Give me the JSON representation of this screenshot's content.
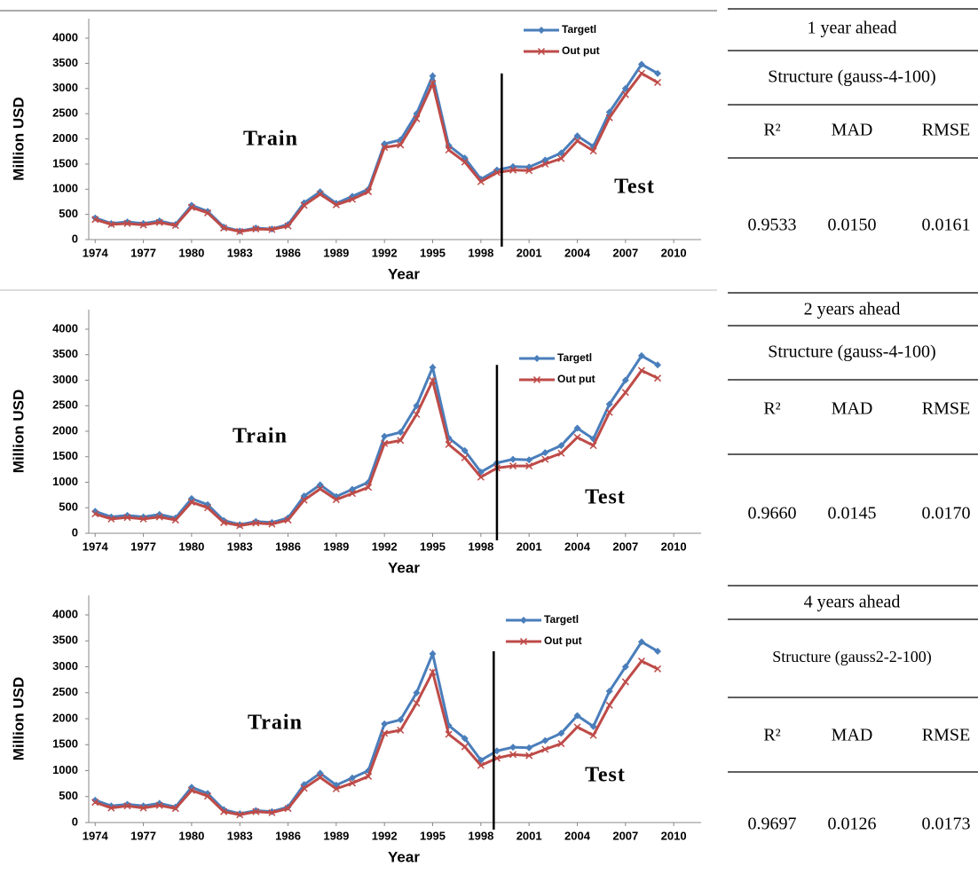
{
  "chart_data": [
    {
      "type": "line",
      "annotations": [
        "Train",
        "Test"
      ],
      "xlabel": "Year",
      "ylabel": "Million USD",
      "x": [
        1974,
        1975,
        1976,
        1977,
        1978,
        1979,
        1980,
        1981,
        1982,
        1983,
        1984,
        1985,
        1986,
        1987,
        1988,
        1989,
        1990,
        1991,
        1992,
        1993,
        1994,
        1995,
        1996,
        1997,
        1998,
        1999,
        2000,
        2001,
        2002,
        2003,
        2004,
        2005,
        2006,
        2007,
        2008,
        2009
      ],
      "series": [
        {
          "name": "Targetl",
          "color": "#4a7ebb",
          "marker": "diamond",
          "values": [
            430,
            320,
            350,
            320,
            370,
            300,
            680,
            560,
            250,
            170,
            230,
            210,
            300,
            730,
            950,
            720,
            860,
            1000,
            1900,
            1980,
            2500,
            3250,
            1870,
            1620,
            1200,
            1380,
            1450,
            1440,
            1580,
            1720,
            2060,
            1850,
            2530,
            3000,
            3480,
            3300
          ]
        },
        {
          "name": "Out put",
          "color": "#be4b48",
          "marker": "x",
          "values": [
            400,
            300,
            320,
            290,
            340,
            280,
            640,
            530,
            230,
            160,
            210,
            200,
            270,
            680,
            900,
            690,
            800,
            950,
            1830,
            1880,
            2400,
            3100,
            1780,
            1540,
            1150,
            1330,
            1380,
            1370,
            1500,
            1610,
            1960,
            1760,
            2420,
            2880,
            3300,
            3120
          ]
        }
      ],
      "xlim": [
        1973.6,
        2010.6
      ],
      "xticks": [
        1974,
        1977,
        1980,
        1983,
        1986,
        1989,
        1992,
        1995,
        1998,
        2001,
        2004,
        2007,
        2010
      ],
      "ylim": [
        0,
        4000
      ],
      "yticks": [
        0,
        500,
        1000,
        1500,
        2000,
        2500,
        3000,
        3500,
        4000
      ],
      "split_x": 1999.3
    },
    {
      "type": "line",
      "annotations": [
        "Train",
        "Test"
      ],
      "xlabel": "Year",
      "ylabel": "Million USD",
      "x": [
        1974,
        1975,
        1976,
        1977,
        1978,
        1979,
        1980,
        1981,
        1982,
        1983,
        1984,
        1985,
        1986,
        1987,
        1988,
        1989,
        1990,
        1991,
        1992,
        1993,
        1994,
        1995,
        1996,
        1997,
        1998,
        1999,
        2000,
        2001,
        2002,
        2003,
        2004,
        2005,
        2006,
        2007,
        2008,
        2009
      ],
      "series": [
        {
          "name": "Targetl",
          "color": "#4a7ebb",
          "marker": "diamond",
          "values": [
            430,
            320,
            350,
            320,
            370,
            300,
            680,
            560,
            250,
            170,
            230,
            210,
            300,
            730,
            950,
            720,
            860,
            1000,
            1900,
            1980,
            2500,
            3250,
            1870,
            1620,
            1200,
            1380,
            1450,
            1440,
            1580,
            1720,
            2060,
            1850,
            2530,
            3000,
            3480,
            3300
          ]
        },
        {
          "name": "Out put",
          "color": "#be4b48",
          "marker": "x",
          "values": [
            380,
            280,
            310,
            280,
            320,
            260,
            610,
            500,
            210,
            150,
            200,
            180,
            260,
            650,
            870,
            660,
            780,
            900,
            1760,
            1820,
            2330,
            2990,
            1740,
            1480,
            1100,
            1280,
            1320,
            1320,
            1450,
            1570,
            1880,
            1720,
            2370,
            2760,
            3190,
            3040
          ]
        }
      ],
      "xlim": [
        1973.6,
        2010.6
      ],
      "xticks": [
        1974,
        1977,
        1980,
        1983,
        1986,
        1989,
        1992,
        1995,
        1998,
        2001,
        2004,
        2007,
        2010
      ],
      "ylim": [
        0,
        4000
      ],
      "yticks": [
        0,
        500,
        1000,
        1500,
        2000,
        2500,
        3000,
        3500,
        4000
      ],
      "split_x": 1999
    },
    {
      "type": "line",
      "annotations": [
        "Train",
        "Test"
      ],
      "xlabel": "Year",
      "ylabel": "Million USD",
      "x": [
        1974,
        1975,
        1976,
        1977,
        1978,
        1979,
        1980,
        1981,
        1982,
        1983,
        1984,
        1985,
        1986,
        1987,
        1988,
        1989,
        1990,
        1991,
        1992,
        1993,
        1994,
        1995,
        1996,
        1997,
        1998,
        1999,
        2000,
        2001,
        2002,
        2003,
        2004,
        2005,
        2006,
        2007,
        2008,
        2009
      ],
      "series": [
        {
          "name": "Targetl",
          "color": "#4a7ebb",
          "marker": "diamond",
          "values": [
            430,
            320,
            350,
            320,
            370,
            300,
            680,
            560,
            250,
            170,
            230,
            210,
            300,
            730,
            950,
            720,
            860,
            1000,
            1900,
            1980,
            2500,
            3250,
            1870,
            1620,
            1200,
            1380,
            1450,
            1440,
            1580,
            1720,
            2060,
            1850,
            2530,
            3000,
            3480,
            3300
          ]
        },
        {
          "name": "Out put",
          "color": "#be4b48",
          "marker": "x",
          "values": [
            390,
            280,
            320,
            280,
            330,
            270,
            620,
            510,
            210,
            150,
            210,
            190,
            270,
            660,
            870,
            650,
            760,
            890,
            1720,
            1780,
            2300,
            2900,
            1700,
            1460,
            1100,
            1240,
            1310,
            1290,
            1410,
            1520,
            1840,
            1680,
            2260,
            2710,
            3110,
            2960
          ]
        }
      ],
      "xlim": [
        1973.6,
        2010.6
      ],
      "xticks": [
        1974,
        1977,
        1980,
        1983,
        1986,
        1989,
        1992,
        1995,
        1998,
        2001,
        2004,
        2007,
        2010
      ],
      "ylim": [
        0,
        4000
      ],
      "yticks": [
        0,
        500,
        1000,
        1500,
        2000,
        2500,
        3000,
        3500,
        4000
      ],
      "split_x": 1998.8
    }
  ],
  "tables": [
    {
      "title": "1 year ahead",
      "structure": "Structure (gauss-4-100)",
      "columns": [
        "R²",
        "MAD",
        "RMSE"
      ],
      "values": [
        "0.9533",
        "0.0150",
        "0.0161"
      ]
    },
    {
      "title": "2 years ahead",
      "structure": "Structure (gauss-4-100)",
      "columns": [
        "R²",
        "MAD",
        "RMSE"
      ],
      "values": [
        "0.9660",
        "0.0145",
        "0.0170"
      ]
    },
    {
      "title": "4 years ahead",
      "structure": "Structure (gauss2-2-100)",
      "columns": [
        "R²",
        "MAD",
        "RMSE"
      ],
      "values": [
        "0.9697",
        "0.0126",
        "0.0173"
      ]
    }
  ]
}
